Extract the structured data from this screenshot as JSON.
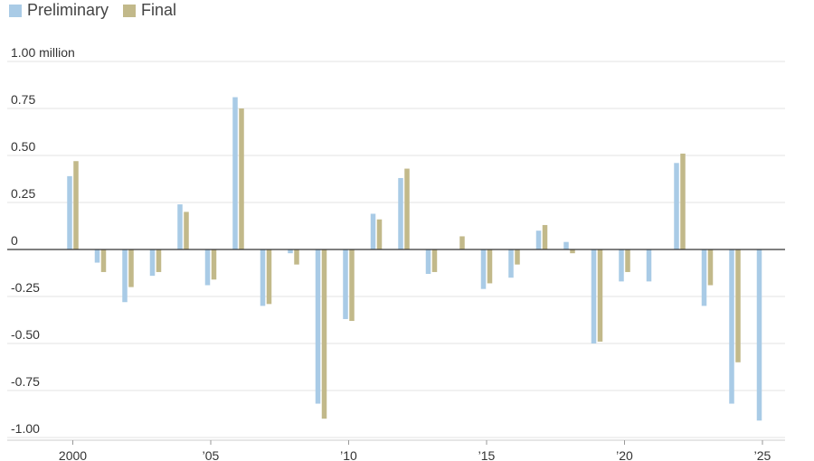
{
  "legend": [
    {
      "label": "Preliminary",
      "color": "#a9cbe6"
    },
    {
      "label": "Final",
      "color": "#c2b98a"
    }
  ],
  "colors": {
    "zero_line": "#333333",
    "grid": "#e3e3e3",
    "tick_text": "#333333"
  },
  "chart_data": {
    "type": "bar",
    "title": "",
    "xlabel": "",
    "ylabel": "",
    "ylim": [
      -1.0,
      1.0
    ],
    "y_ticks": [
      {
        "value": 1.0,
        "label": "1.00 million"
      },
      {
        "value": 0.75,
        "label": "0.75"
      },
      {
        "value": 0.5,
        "label": "0.50"
      },
      {
        "value": 0.25,
        "label": "0.25"
      },
      {
        "value": 0,
        "label": "0"
      },
      {
        "value": -0.25,
        "label": "-0.25"
      },
      {
        "value": -0.5,
        "label": "-0.50"
      },
      {
        "value": -0.75,
        "label": "-0.75"
      },
      {
        "value": -1.0,
        "label": "-1.00"
      }
    ],
    "x_ticks": [
      {
        "year": 2000,
        "label": "2000"
      },
      {
        "year": 2005,
        "label": "’05"
      },
      {
        "year": 2010,
        "label": "’10"
      },
      {
        "year": 2015,
        "label": "’15"
      },
      {
        "year": 2020,
        "label": "’20"
      },
      {
        "year": 2025,
        "label": "’25"
      }
    ],
    "categories": [
      2000,
      2001,
      2002,
      2003,
      2004,
      2005,
      2006,
      2007,
      2008,
      2009,
      2010,
      2011,
      2012,
      2013,
      2014,
      2015,
      2016,
      2017,
      2018,
      2019,
      2020,
      2021,
      2022,
      2023,
      2024,
      2025
    ],
    "series": [
      {
        "name": "Preliminary",
        "color": "#a9cbe6",
        "values": [
          0.39,
          -0.07,
          -0.28,
          -0.14,
          0.24,
          -0.19,
          0.81,
          -0.3,
          -0.02,
          -0.82,
          -0.37,
          0.19,
          0.38,
          -0.13,
          0.0,
          -0.21,
          -0.15,
          0.1,
          0.04,
          -0.5,
          -0.17,
          -0.17,
          0.46,
          -0.3,
          -0.82,
          -0.91
        ]
      },
      {
        "name": "Final",
        "color": "#c2b98a",
        "values": [
          0.47,
          -0.12,
          -0.2,
          -0.12,
          0.2,
          -0.16,
          0.75,
          -0.29,
          -0.08,
          -0.9,
          -0.38,
          0.16,
          0.43,
          -0.12,
          0.07,
          -0.18,
          -0.08,
          0.13,
          -0.02,
          -0.49,
          -0.12,
          0.0,
          0.51,
          -0.19,
          -0.6,
          null
        ]
      }
    ]
  }
}
